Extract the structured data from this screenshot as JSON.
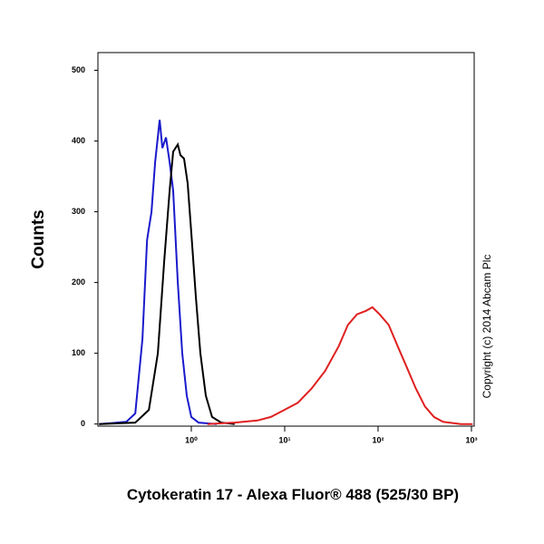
{
  "chart_data": {
    "type": "line",
    "x_label": "Cytokeratin 17 - Alexa Fluor® 488 (525/30 BP)",
    "y_label": "Counts",
    "annotation": "Copyright (c) 2014 Abcam Plc",
    "xscale": "log",
    "xlim": [
      0.1,
      1070
    ],
    "ylim": [
      -3,
      525
    ],
    "xticks": [
      {
        "value": 1,
        "label": "10⁰"
      },
      {
        "value": 10,
        "label": "10¹"
      },
      {
        "value": 100,
        "label": "10²"
      },
      {
        "value": 1000,
        "label": "10³"
      }
    ],
    "yticks": [
      0,
      100,
      200,
      300,
      400,
      500
    ],
    "series": [
      {
        "color": "#1a1acc",
        "x": [
          0.103,
          0.201,
          0.251,
          0.3,
          0.336,
          0.375,
          0.41,
          0.458,
          0.49,
          0.536,
          0.586,
          0.64,
          0.716,
          0.8,
          0.895,
          1.0,
          1.195,
          1.87
        ],
        "values": [
          0,
          3,
          15,
          120,
          260,
          300,
          370,
          430,
          390,
          405,
          370,
          330,
          200,
          100,
          40,
          10,
          2,
          0
        ]
      },
      {
        "color": "#000000",
        "x": [
          0.103,
          0.251,
          0.351,
          0.438,
          0.512,
          0.586,
          0.64,
          0.716,
          0.765,
          0.837,
          0.915,
          1.0,
          1.118,
          1.25,
          1.43,
          1.67,
          2.09,
          2.91
        ],
        "values": [
          0,
          2,
          20,
          100,
          230,
          330,
          385,
          395,
          380,
          375,
          340,
          270,
          180,
          100,
          40,
          10,
          2,
          0
        ]
      },
      {
        "color": "#e02020",
        "x": [
          1.49,
          2.91,
          5.09,
          7.1,
          9.91,
          13.8,
          19.4,
          27.1,
          37.9,
          47.5,
          59.4,
          74.3,
          86.9,
          104,
          130,
          162,
          203,
          254,
          317,
          397,
          497,
          770,
          1030
        ],
        "values": [
          0,
          2,
          5,
          10,
          20,
          30,
          50,
          75,
          110,
          140,
          155,
          160,
          165,
          155,
          140,
          110,
          80,
          50,
          25,
          10,
          3,
          0,
          0
        ]
      }
    ]
  }
}
